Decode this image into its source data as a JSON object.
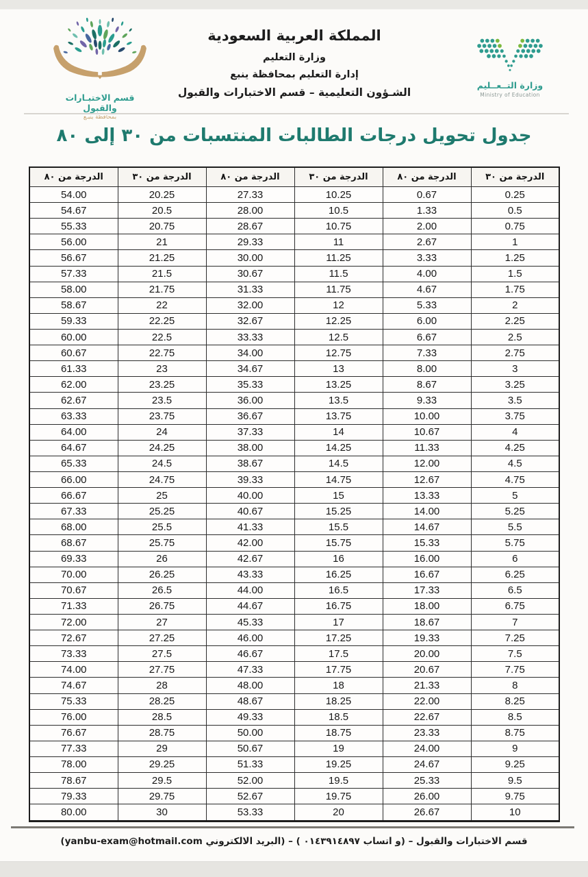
{
  "header": {
    "kingdom": "المملكة العربية السعودية",
    "ministry": "وزارة التعليم",
    "department": "إدارة التعليم بمحافظة ينبع",
    "section": "الشـؤون التعليمية – قسم الاختبارات والقبول"
  },
  "dept_logo": {
    "line1": "قسم الاختبـارات والقبول",
    "line2": "بمحافظة ينبـع"
  },
  "ministry_logo": {
    "name_ar": "وزارة التــعــليم",
    "name_en": "Ministry of Education"
  },
  "title": "جدول تحويل درجات الطالبات المنتسبات  من ٣٠ إلى ٨٠",
  "table": {
    "headers": [
      "الدرجة من ٨٠",
      "الدرجة من ٣٠",
      "الدرجة من ٨٠",
      "الدرجة من ٣٠",
      "الدرجة من ٨٠",
      "الدرجة من ٣٠"
    ],
    "rows": [
      [
        "54.00",
        "20.25",
        "27.33",
        "10.25",
        "0.67",
        "0.25"
      ],
      [
        "54.67",
        "20.5",
        "28.00",
        "10.5",
        "1.33",
        "0.5"
      ],
      [
        "55.33",
        "20.75",
        "28.67",
        "10.75",
        "2.00",
        "0.75"
      ],
      [
        "56.00",
        "21",
        "29.33",
        "11",
        "2.67",
        "1"
      ],
      [
        "56.67",
        "21.25",
        "30.00",
        "11.25",
        "3.33",
        "1.25"
      ],
      [
        "57.33",
        "21.5",
        "30.67",
        "11.5",
        "4.00",
        "1.5"
      ],
      [
        "58.00",
        "21.75",
        "31.33",
        "11.75",
        "4.67",
        "1.75"
      ],
      [
        "58.67",
        "22",
        "32.00",
        "12",
        "5.33",
        "2"
      ],
      [
        "59.33",
        "22.25",
        "32.67",
        "12.25",
        "6.00",
        "2.25"
      ],
      [
        "60.00",
        "22.5",
        "33.33",
        "12.5",
        "6.67",
        "2.5"
      ],
      [
        "60.67",
        "22.75",
        "34.00",
        "12.75",
        "7.33",
        "2.75"
      ],
      [
        "61.33",
        "23",
        "34.67",
        "13",
        "8.00",
        "3"
      ],
      [
        "62.00",
        "23.25",
        "35.33",
        "13.25",
        "8.67",
        "3.25"
      ],
      [
        "62.67",
        "23.5",
        "36.00",
        "13.5",
        "9.33",
        "3.5"
      ],
      [
        "63.33",
        "23.75",
        "36.67",
        "13.75",
        "10.00",
        "3.75"
      ],
      [
        "64.00",
        "24",
        "37.33",
        "14",
        "10.67",
        "4"
      ],
      [
        "64.67",
        "24.25",
        "38.00",
        "14.25",
        "11.33",
        "4.25"
      ],
      [
        "65.33",
        "24.5",
        "38.67",
        "14.5",
        "12.00",
        "4.5"
      ],
      [
        "66.00",
        "24.75",
        "39.33",
        "14.75",
        "12.67",
        "4.75"
      ],
      [
        "66.67",
        "25",
        "40.00",
        "15",
        "13.33",
        "5"
      ],
      [
        "67.33",
        "25.25",
        "40.67",
        "15.25",
        "14.00",
        "5.25"
      ],
      [
        "68.00",
        "25.5",
        "41.33",
        "15.5",
        "14.67",
        "5.5"
      ],
      [
        "68.67",
        "25.75",
        "42.00",
        "15.75",
        "15.33",
        "5.75"
      ],
      [
        "69.33",
        "26",
        "42.67",
        "16",
        "16.00",
        "6"
      ],
      [
        "70.00",
        "26.25",
        "43.33",
        "16.25",
        "16.67",
        "6.25"
      ],
      [
        "70.67",
        "26.5",
        "44.00",
        "16.5",
        "17.33",
        "6.5"
      ],
      [
        "71.33",
        "26.75",
        "44.67",
        "16.75",
        "18.00",
        "6.75"
      ],
      [
        "72.00",
        "27",
        "45.33",
        "17",
        "18.67",
        "7"
      ],
      [
        "72.67",
        "27.25",
        "46.00",
        "17.25",
        "19.33",
        "7.25"
      ],
      [
        "73.33",
        "27.5",
        "46.67",
        "17.5",
        "20.00",
        "7.5"
      ],
      [
        "74.00",
        "27.75",
        "47.33",
        "17.75",
        "20.67",
        "7.75"
      ],
      [
        "74.67",
        "28",
        "48.00",
        "18",
        "21.33",
        "8"
      ],
      [
        "75.33",
        "28.25",
        "48.67",
        "18.25",
        "22.00",
        "8.25"
      ],
      [
        "76.00",
        "28.5",
        "49.33",
        "18.5",
        "22.67",
        "8.5"
      ],
      [
        "76.67",
        "28.75",
        "50.00",
        "18.75",
        "23.33",
        "8.75"
      ],
      [
        "77.33",
        "29",
        "50.67",
        "19",
        "24.00",
        "9"
      ],
      [
        "78.00",
        "29.25",
        "51.33",
        "19.25",
        "24.67",
        "9.25"
      ],
      [
        "78.67",
        "29.5",
        "52.00",
        "19.5",
        "25.33",
        "9.5"
      ],
      [
        "79.33",
        "29.75",
        "52.67",
        "19.75",
        "26.00",
        "9.75"
      ],
      [
        "80.00",
        "30",
        "53.33",
        "20",
        "26.67",
        "10"
      ]
    ]
  },
  "footer": "قسم الاختبارات والقبول – (و اتساب ٠١٤٣٩١٤٨٩٧ ) – (البريد الالكتروني yanbu-exam@hotmail.com)",
  "colors": {
    "title_teal": "#1E7A6E",
    "logo_teal": "#2F9C8F",
    "logo_green": "#7CB93E",
    "hand_tan": "#C6A06C",
    "table_border": "#2B2B2B"
  }
}
